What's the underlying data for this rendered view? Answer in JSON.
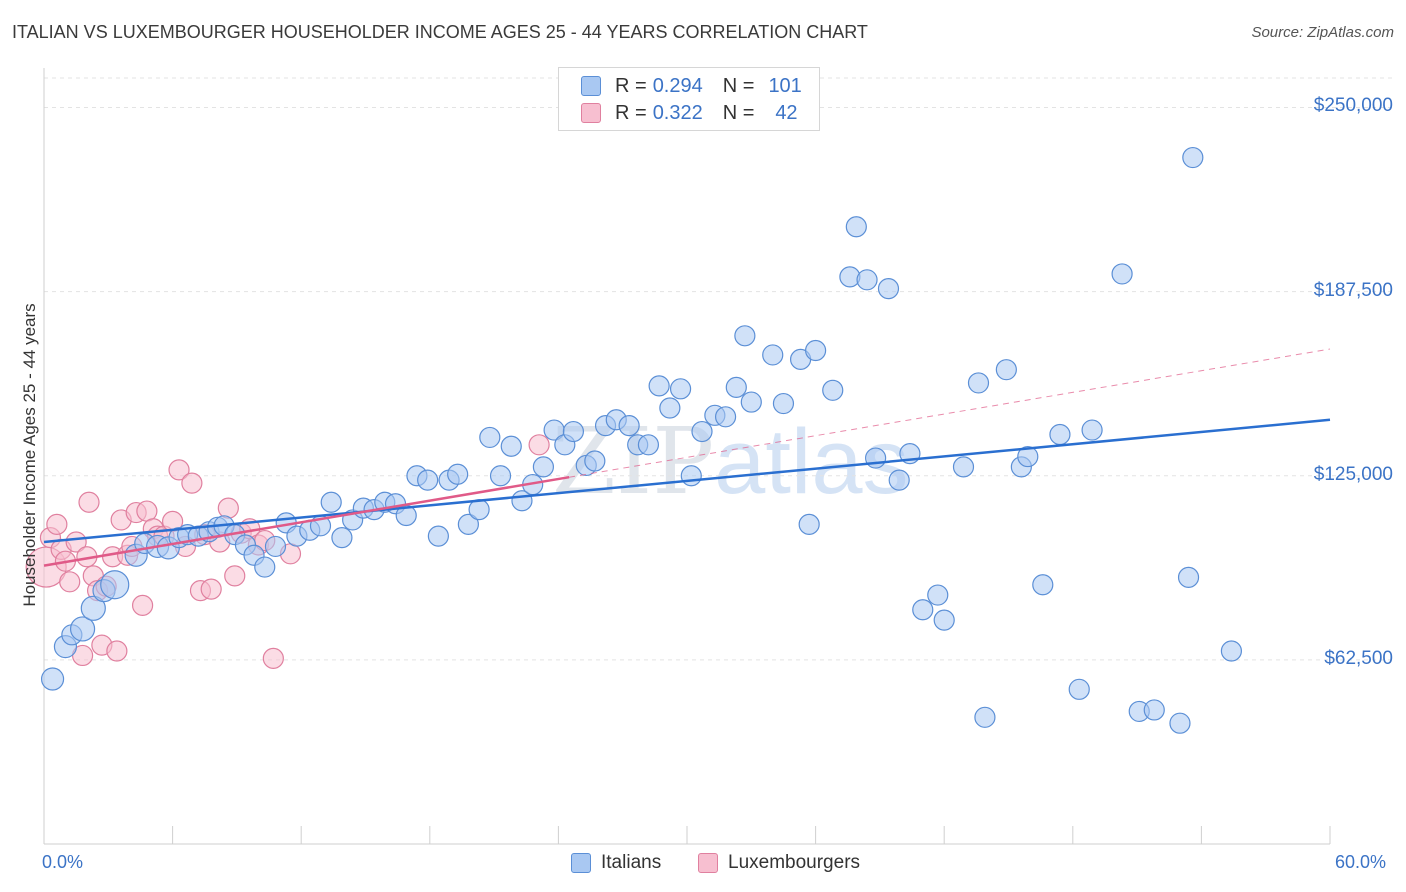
{
  "header": {
    "title": "ITALIAN VS LUXEMBOURGER HOUSEHOLDER INCOME AGES 25 - 44 YEARS CORRELATION CHART",
    "source": "Source: ZipAtlas.com"
  },
  "watermark": {
    "zip": "ZIP",
    "atlas": "atlas"
  },
  "legend": {
    "rows": [
      {
        "r_label": "R =",
        "r_value": "0.294",
        "n_label": "N =",
        "n_value": "101",
        "color": "#a9c8f2",
        "border": "#5b8fd6"
      },
      {
        "r_label": "R =",
        "r_value": "0.322",
        "n_label": "N =",
        "n_value": "42",
        "color": "#f7bfd0",
        "border": "#e0809f"
      }
    ]
  },
  "bottom_legend": {
    "italians": "Italians",
    "luxembourgers": "Luxembourgers"
  },
  "colors": {
    "blue_fill": "#a9c8f2",
    "blue_stroke": "#5b8fd6",
    "blue_line": "#2a6fd0",
    "pink_fill": "#f7bfd0",
    "pink_stroke": "#e0809f",
    "pink_line": "#e05a88",
    "grid": "#e3e3e3",
    "axis_text": "#3b73c6"
  },
  "chart_data": {
    "type": "scatter",
    "title": "ITALIAN VS LUXEMBOURGER HOUSEHOLDER INCOME AGES 25 - 44 YEARS CORRELATION CHART",
    "xlabel": "",
    "ylabel": "Householder Income Ages 25 - 44 years",
    "xlim": [
      0,
      60
    ],
    "ylim": [
      0,
      260000
    ],
    "x_tick_labels": [
      "0.0%",
      "60.0%"
    ],
    "y_ticks": [
      62500,
      125000,
      187500,
      250000
    ],
    "y_tick_labels": [
      "$62,500",
      "$125,000",
      "$187,500",
      "$250,000"
    ],
    "grid": true,
    "legend_position": "top-center",
    "series": [
      {
        "name": "Italians",
        "trend": {
          "x": [
            0,
            60
          ],
          "y": [
            102500,
            144000
          ],
          "dashed_extension": false
        },
        "points": [
          [
            0.4,
            56000,
            11
          ],
          [
            1.0,
            67000,
            11
          ],
          [
            1.3,
            71000,
            10
          ],
          [
            1.8,
            73000,
            12
          ],
          [
            2.3,
            80000,
            12
          ],
          [
            2.8,
            86000,
            11
          ],
          [
            3.3,
            88000,
            14
          ],
          [
            4.3,
            98000,
            11
          ],
          [
            4.7,
            102000,
            10
          ],
          [
            5.3,
            101000,
            11
          ],
          [
            5.8,
            100500,
            11
          ],
          [
            6.3,
            104000,
            10
          ],
          [
            6.7,
            105000,
            10
          ],
          [
            7.2,
            104500,
            10
          ],
          [
            7.7,
            106000,
            10
          ],
          [
            8.1,
            107500,
            10
          ],
          [
            8.4,
            108000,
            10
          ],
          [
            8.9,
            105000,
            10
          ],
          [
            9.4,
            101500,
            10
          ],
          [
            9.8,
            98000,
            10
          ],
          [
            10.3,
            94000,
            10
          ],
          [
            10.8,
            101000,
            10
          ],
          [
            11.3,
            109000,
            10
          ],
          [
            11.8,
            104500,
            10
          ],
          [
            12.4,
            106500,
            10
          ],
          [
            12.9,
            108000,
            10
          ],
          [
            13.4,
            116000,
            10
          ],
          [
            13.9,
            104000,
            10
          ],
          [
            14.4,
            110000,
            10
          ],
          [
            14.9,
            114000,
            10
          ],
          [
            15.4,
            113500,
            10
          ],
          [
            15.9,
            116000,
            10
          ],
          [
            16.4,
            115500,
            10
          ],
          [
            16.9,
            111500,
            10
          ],
          [
            17.4,
            125000,
            10
          ],
          [
            17.9,
            123500,
            10
          ],
          [
            18.4,
            104500,
            10
          ],
          [
            18.9,
            123500,
            10
          ],
          [
            19.3,
            125500,
            10
          ],
          [
            19.8,
            108500,
            10
          ],
          [
            20.3,
            113500,
            10
          ],
          [
            20.8,
            138000,
            10
          ],
          [
            21.3,
            125000,
            10
          ],
          [
            21.8,
            135000,
            10
          ],
          [
            22.3,
            116500,
            10
          ],
          [
            22.8,
            122000,
            10
          ],
          [
            23.3,
            128000,
            10
          ],
          [
            23.8,
            140500,
            10
          ],
          [
            24.3,
            135500,
            10
          ],
          [
            24.7,
            140000,
            10
          ],
          [
            25.3,
            128500,
            10
          ],
          [
            25.7,
            130000,
            10
          ],
          [
            26.2,
            142000,
            10
          ],
          [
            26.7,
            144000,
            10
          ],
          [
            27.3,
            142000,
            10
          ],
          [
            27.7,
            135500,
            10
          ],
          [
            28.2,
            135500,
            10
          ],
          [
            28.7,
            155500,
            10
          ],
          [
            29.2,
            148000,
            10
          ],
          [
            29.7,
            154500,
            10
          ],
          [
            30.2,
            125000,
            10
          ],
          [
            30.7,
            140000,
            10
          ],
          [
            31.3,
            145500,
            10
          ],
          [
            31.8,
            145000,
            10
          ],
          [
            32.3,
            155000,
            10
          ],
          [
            32.7,
            172500,
            10
          ],
          [
            33.0,
            150000,
            10
          ],
          [
            34.0,
            166000,
            10
          ],
          [
            34.5,
            149500,
            10
          ],
          [
            35.3,
            164500,
            10
          ],
          [
            35.7,
            108500,
            10
          ],
          [
            36.0,
            167500,
            10
          ],
          [
            36.8,
            154000,
            10
          ],
          [
            37.6,
            192500,
            10
          ],
          [
            37.9,
            209500,
            10
          ],
          [
            38.4,
            191500,
            10
          ],
          [
            38.8,
            131000,
            10
          ],
          [
            39.4,
            188500,
            10
          ],
          [
            39.9,
            123500,
            10
          ],
          [
            40.4,
            132500,
            10
          ],
          [
            41.0,
            79500,
            10
          ],
          [
            41.7,
            84500,
            10
          ],
          [
            42.0,
            76000,
            10
          ],
          [
            42.9,
            128000,
            10
          ],
          [
            43.6,
            156500,
            10
          ],
          [
            43.9,
            43000,
            10
          ],
          [
            44.9,
            161000,
            10
          ],
          [
            45.6,
            128000,
            10
          ],
          [
            45.9,
            131500,
            10
          ],
          [
            46.6,
            88000,
            10
          ],
          [
            47.4,
            139000,
            10
          ],
          [
            48.3,
            52500,
            10
          ],
          [
            48.9,
            140500,
            10
          ],
          [
            50.3,
            193500,
            10
          ],
          [
            51.1,
            45000,
            10
          ],
          [
            51.8,
            45500,
            10
          ],
          [
            53.0,
            41000,
            10
          ],
          [
            53.4,
            90500,
            10
          ],
          [
            53.6,
            233000,
            10
          ],
          [
            55.4,
            65500,
            10
          ]
        ]
      },
      {
        "name": "Luxembourgers",
        "trend": {
          "x": [
            0,
            24.5,
            60
          ],
          "y": [
            94500,
            124500,
            168000
          ],
          "dashed_extension": true
        },
        "points": [
          [
            0.1,
            94000,
            20
          ],
          [
            0.3,
            104000,
            10
          ],
          [
            0.6,
            108500,
            10
          ],
          [
            0.8,
            100000,
            10
          ],
          [
            1.0,
            96000,
            10
          ],
          [
            1.2,
            89000,
            10
          ],
          [
            1.5,
            102500,
            10
          ],
          [
            1.8,
            64000,
            10
          ],
          [
            2.0,
            97500,
            10
          ],
          [
            2.1,
            116000,
            10
          ],
          [
            2.3,
            91000,
            10
          ],
          [
            2.5,
            86000,
            10
          ],
          [
            2.7,
            67500,
            10
          ],
          [
            2.9,
            87500,
            10
          ],
          [
            3.2,
            97500,
            10
          ],
          [
            3.4,
            65500,
            10
          ],
          [
            3.6,
            110000,
            10
          ],
          [
            3.9,
            98000,
            10
          ],
          [
            4.1,
            101000,
            10
          ],
          [
            4.3,
            112500,
            10
          ],
          [
            4.6,
            81000,
            10
          ],
          [
            4.8,
            113000,
            10
          ],
          [
            5.1,
            107000,
            10
          ],
          [
            5.3,
            104500,
            10
          ],
          [
            5.6,
            104500,
            10
          ],
          [
            6.0,
            109500,
            10
          ],
          [
            6.3,
            127000,
            10
          ],
          [
            6.6,
            101000,
            10
          ],
          [
            6.9,
            122500,
            10
          ],
          [
            7.3,
            86000,
            10
          ],
          [
            7.5,
            105000,
            10
          ],
          [
            7.8,
            86500,
            10
          ],
          [
            8.2,
            102500,
            10
          ],
          [
            8.6,
            114000,
            10
          ],
          [
            8.9,
            91000,
            10
          ],
          [
            9.2,
            105500,
            10
          ],
          [
            9.6,
            107000,
            10
          ],
          [
            10.0,
            101500,
            10
          ],
          [
            10.3,
            103000,
            10
          ],
          [
            10.7,
            63000,
            10
          ],
          [
            11.5,
            98500,
            10
          ],
          [
            23.1,
            135500,
            10
          ]
        ]
      }
    ]
  }
}
